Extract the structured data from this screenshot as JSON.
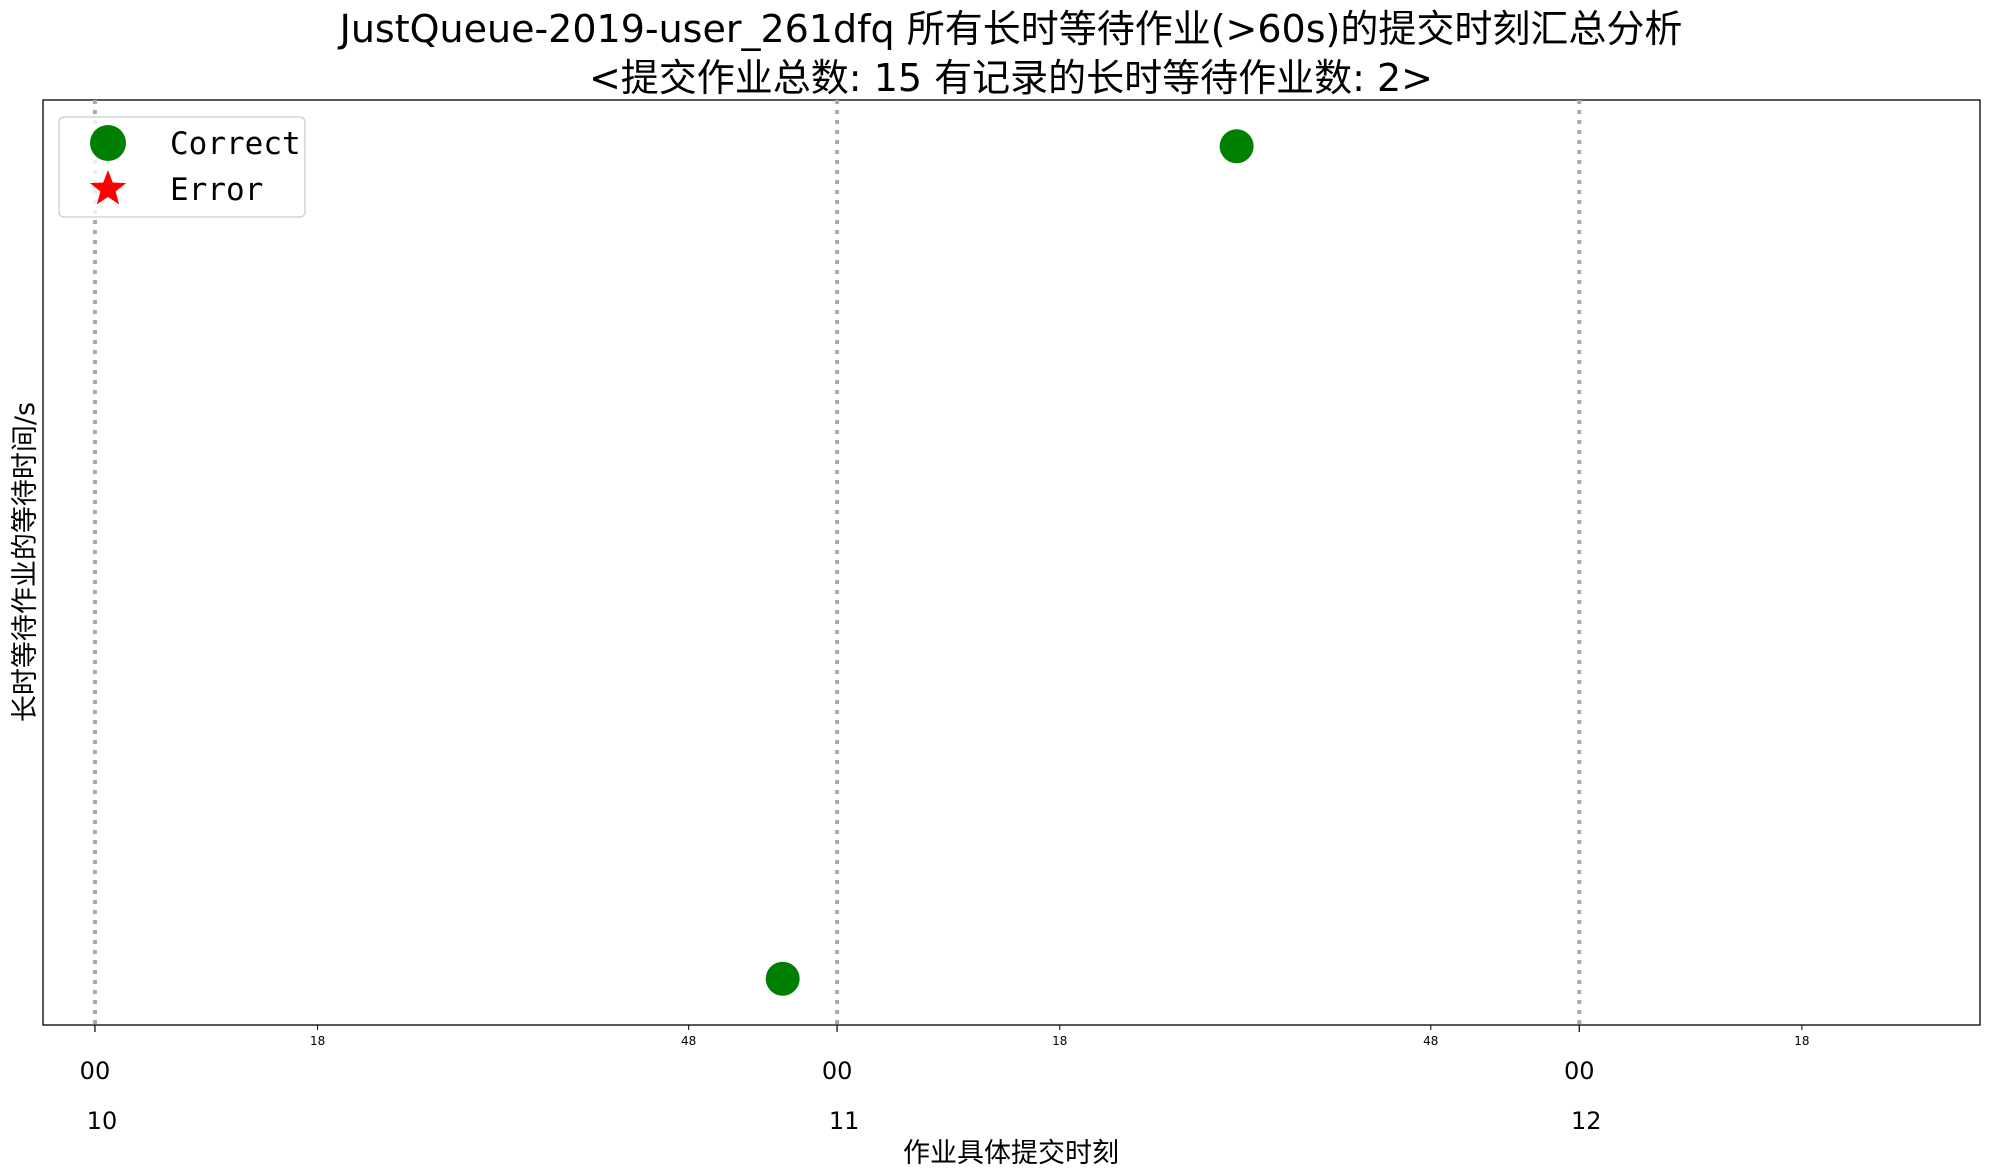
{
  "chart_data": {
    "type": "scatter",
    "title_line1": "JustQueue-2019-user_261dfq 所有长时等待作业(>60s)的提交时刻汇总分析",
    "title_line2": "<提交作业总数: 15  有记录的长时等待作业数: 2>",
    "xlabel": "作业具体提交时刻",
    "ylabel": "长时等待作业的等待时间/s",
    "minor_ticks": [
      {
        "label": "18",
        "minute": 618
      },
      {
        "label": "48",
        "minute": 648
      },
      {
        "label": "18",
        "minute": 678
      },
      {
        "label": "48",
        "minute": 708
      },
      {
        "label": "18",
        "minute": 738
      }
    ],
    "major_ticks": [
      {
        "label_top": "00",
        "label_bottom": "10",
        "minute": 600
      },
      {
        "label_top": "00",
        "label_bottom": "11",
        "minute": 660
      },
      {
        "label_top": "00",
        "label_bottom": "12",
        "minute": 720
      }
    ],
    "day_separators": [
      600,
      660,
      720
    ],
    "xlim": [
      595.8,
      752.4
    ],
    "ylim": [
      0,
      1
    ],
    "series": [
      {
        "name": "Correct",
        "marker": "circle",
        "color": "#008000",
        "points": [
          {
            "x": 655.6,
            "y": 0.05
          },
          {
            "x": 692.3,
            "y": 0.95
          }
        ]
      },
      {
        "name": "Error",
        "marker": "star",
        "color": "#ff0000",
        "points": []
      }
    ],
    "legend_position": "upper-left",
    "grid": false
  }
}
